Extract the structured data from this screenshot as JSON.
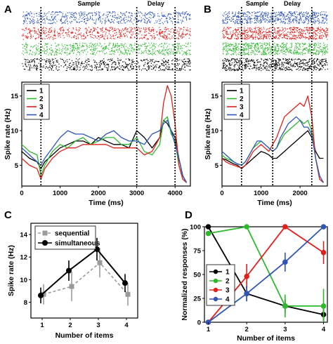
{
  "colors": {
    "c1": "#000000",
    "c2": "#2db82d",
    "c3": "#e0201b",
    "c4": "#2f56b7",
    "seq": "#9a9a9a"
  },
  "panels": {
    "A": "A",
    "B": "B",
    "C": "C",
    "D": "D"
  },
  "chart_data": [
    {
      "panel": "A",
      "type": "line",
      "epochs": {
        "sample": "Sample",
        "delay": "Delay"
      },
      "epoch_lines_ms": [
        500,
        3000,
        4000
      ],
      "xlabel": "Time (ms)",
      "ylabel": "Spike rate (Hz)",
      "xlim": [
        0,
        4400
      ],
      "ylim": [
        2,
        17
      ],
      "xticks": [
        0,
        1000,
        2000,
        3000,
        4000
      ],
      "yticks": [
        5,
        10,
        15
      ],
      "legend_position": "top-left",
      "x": [
        0,
        200,
        400,
        500,
        600,
        800,
        1000,
        1200,
        1400,
        1600,
        1800,
        2000,
        2200,
        2400,
        2600,
        2800,
        3000,
        3200,
        3400,
        3600,
        3700,
        3800,
        3900,
        4000,
        4100,
        4200,
        4300
      ],
      "series": [
        {
          "name": "1",
          "color": "#000000",
          "values": [
            7,
            6,
            5.5,
            4.5,
            5.5,
            6.5,
            7.5,
            8,
            8.5,
            8.5,
            8,
            9,
            8.5,
            8,
            8,
            7.5,
            10,
            9,
            7.5,
            9,
            11.5,
            11,
            10,
            9,
            6,
            3.5,
            2.5
          ]
        },
        {
          "name": "2",
          "color": "#2db82d",
          "values": [
            8,
            7,
            6.5,
            3.5,
            5,
            7,
            8,
            7.5,
            8.5,
            9,
            8,
            8.5,
            9,
            9,
            8,
            8,
            9,
            7,
            6.5,
            8,
            11.5,
            12,
            9.5,
            8.5,
            5,
            3,
            2.5
          ]
        },
        {
          "name": "3",
          "color": "#e0201b",
          "values": [
            6,
            5,
            4.5,
            3,
            4.5,
            6,
            7,
            7.5,
            7.5,
            8,
            8,
            8,
            8,
            7.5,
            7.5,
            7.5,
            7.5,
            6.5,
            7,
            9,
            14,
            16.5,
            15,
            11,
            5,
            3,
            2.5
          ]
        },
        {
          "name": "4",
          "color": "#2f56b7",
          "values": [
            7.5,
            6.5,
            5.5,
            5,
            6,
            7.5,
            9,
            10,
            9.5,
            9.5,
            9,
            8.5,
            9.5,
            10,
            9,
            8.5,
            8.5,
            8,
            9.5,
            10,
            11,
            11.5,
            10,
            8,
            6,
            3.5,
            2.5
          ]
        }
      ]
    },
    {
      "panel": "B",
      "type": "line",
      "epochs": {
        "sample": "Sample",
        "delay": "Delay"
      },
      "epoch_lines_ms": [
        500,
        1300,
        2300
      ],
      "xlabel": "Time (ms)",
      "ylabel": "Spike rate (Hz)",
      "xlim": [
        0,
        2700
      ],
      "ylim": [
        2,
        17
      ],
      "xticks": [
        0,
        1000,
        2000
      ],
      "yticks": [
        5,
        10,
        15
      ],
      "legend_position": "top-left",
      "x": [
        0,
        100,
        200,
        300,
        400,
        500,
        600,
        700,
        800,
        900,
        1000,
        1100,
        1200,
        1300,
        1400,
        1500,
        1600,
        1700,
        1800,
        1900,
        2000,
        2100,
        2200,
        2300,
        2400,
        2500,
        2600
      ],
      "series": [
        {
          "name": "1",
          "color": "#000000",
          "values": [
            6,
            5.8,
            5.5,
            5.2,
            5,
            4.5,
            5,
            5.5,
            6,
            6.5,
            7,
            6.8,
            6.5,
            6,
            6,
            6.5,
            7,
            7.5,
            8,
            8.5,
            9,
            9.5,
            10,
            9,
            7,
            6,
            6
          ]
        },
        {
          "name": "2",
          "color": "#2db82d",
          "values": [
            6.5,
            6,
            5.8,
            5.5,
            5.2,
            5,
            5.5,
            6.5,
            7.5,
            8,
            8.5,
            8,
            7.5,
            7,
            7.5,
            8.5,
            9.5,
            10,
            10.5,
            11,
            11.5,
            11,
            11.5,
            10,
            6,
            3,
            2.5
          ]
        },
        {
          "name": "3",
          "color": "#e0201b",
          "values": [
            6,
            5.5,
            5.2,
            5,
            4.8,
            4.6,
            5,
            6,
            7,
            7.5,
            8,
            7.5,
            7,
            8,
            9,
            10.5,
            12,
            12.5,
            13,
            13.5,
            14,
            13.5,
            15,
            12,
            6,
            3,
            2.5
          ]
        },
        {
          "name": "4",
          "color": "#2f56b7",
          "values": [
            7,
            6.5,
            6,
            5.5,
            5.2,
            5,
            5.5,
            6.5,
            7.5,
            8.5,
            8.5,
            8,
            7.5,
            7,
            7.5,
            9,
            10,
            11,
            11.5,
            12,
            11.5,
            10.5,
            10.5,
            9.5,
            6,
            3.5,
            2.5
          ]
        }
      ]
    },
    {
      "panel": "C",
      "type": "line",
      "xlabel": "Number of items",
      "ylabel": "Spike rate (Hz)",
      "xlim": [
        0.6,
        4.4
      ],
      "ylim": [
        6.6,
        15
      ],
      "xticks": [
        1,
        2,
        3,
        4
      ],
      "yticks": [
        8,
        10,
        12,
        14
      ],
      "legend_position": "top-left",
      "categories": [
        1,
        2,
        3,
        4
      ],
      "series": [
        {
          "name": "sequential",
          "color": "#9a9a9a",
          "style": "dashed",
          "marker": "square",
          "values": [
            8.7,
            9.4,
            11.5,
            8.7
          ],
          "errors": [
            0.9,
            1.3,
            1.3,
            1.0
          ]
        },
        {
          "name": "simultaneous",
          "color": "#000000",
          "style": "solid",
          "marker": "circle",
          "values": [
            8.6,
            10.8,
            12.7,
            9.7
          ],
          "errors": [
            0.7,
            0.9,
            1.0,
            0.8
          ]
        }
      ]
    },
    {
      "panel": "D",
      "type": "line",
      "xlabel": "Number of items",
      "ylabel": "Normalized responses (%)",
      "xlim": [
        0.9,
        4.1
      ],
      "ylim": [
        0,
        100
      ],
      "xticks": [
        1,
        2,
        3,
        4
      ],
      "yticks": [
        0,
        25,
        50,
        75,
        100
      ],
      "legend_position": "bottom-left",
      "categories": [
        1,
        2,
        3,
        4
      ],
      "series": [
        {
          "name": "1",
          "color": "#000000",
          "values": [
            100,
            30,
            17,
            8
          ],
          "errors": [
            0,
            8,
            7,
            10
          ]
        },
        {
          "name": "2",
          "color": "#2db82d",
          "values": [
            93,
            100,
            17,
            17
          ],
          "errors": [
            0,
            0,
            12,
            18
          ]
        },
        {
          "name": "3",
          "color": "#e0201b",
          "values": [
            0,
            48,
            100,
            73
          ],
          "errors": [
            0,
            13,
            0,
            12
          ]
        },
        {
          "name": "4",
          "color": "#2f56b7",
          "values": [
            0,
            30,
            63,
            100
          ],
          "errors": [
            0,
            8,
            10,
            0
          ]
        }
      ]
    }
  ]
}
